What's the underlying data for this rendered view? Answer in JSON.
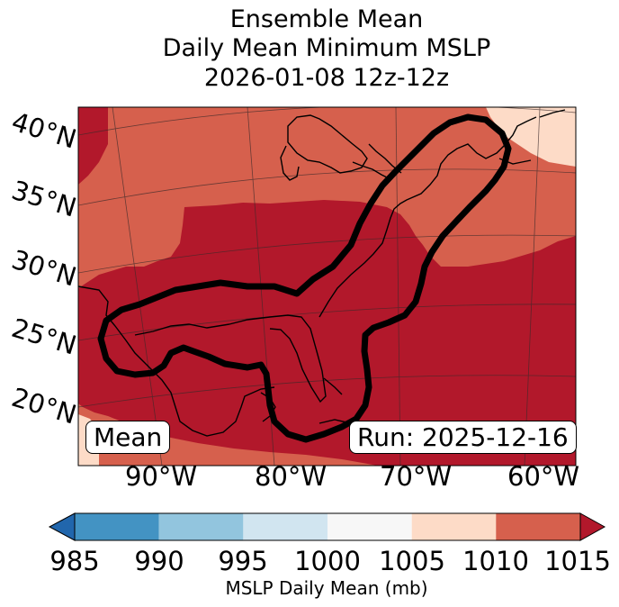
{
  "title": {
    "line1": "Ensemble Mean",
    "line2": "Daily Mean Minimum MSLP",
    "line3": "2026-01-08 12z-12z"
  },
  "map": {
    "lat_labels": [
      "40°N",
      "35°N",
      "30°N",
      "25°N",
      "20°N"
    ],
    "lon_labels": [
      "90°W",
      "80°W",
      "70°W",
      "60°W"
    ],
    "left_box": "Mean",
    "right_box": "Run: 2025-12-16",
    "colors": {
      "fill_1005_1010": "#fddbc7",
      "fill_1010_1015": "#d6604d",
      "fill_above_1015": "#b2182b",
      "contour": "#000000",
      "coast": "#000000"
    }
  },
  "colorbar": {
    "label": "MSLP Daily Mean (mb)",
    "ticks": [
      "985",
      "990",
      "995",
      "1000",
      "1005",
      "1010",
      "1015"
    ],
    "colors": [
      "#2166ac",
      "#4393c3",
      "#92c5de",
      "#d1e5f0",
      "#f7f7f7",
      "#fddbc7",
      "#d6604d",
      "#b2182b"
    ]
  }
}
